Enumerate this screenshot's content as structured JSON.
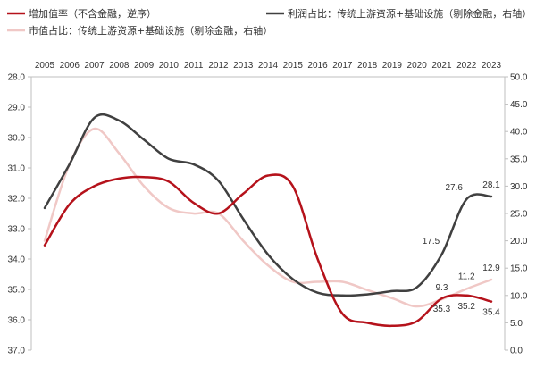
{
  "chart_data": {
    "type": "line",
    "categories": [
      "2005",
      "2006",
      "2007",
      "2008",
      "2009",
      "2010",
      "2011",
      "2012",
      "2013",
      "2014",
      "2015",
      "2016",
      "2017",
      "2018",
      "2019",
      "2020",
      "2021",
      "2022",
      "2023"
    ],
    "left_axis": {
      "reversed": true,
      "ylim": [
        28.0,
        37.0
      ],
      "ticks": [
        "28.0",
        "29.0",
        "30.0",
        "31.0",
        "32.0",
        "33.0",
        "34.0",
        "35.0",
        "36.0",
        "37.0"
      ]
    },
    "right_axis": {
      "ylim": [
        0,
        50
      ],
      "ticks": [
        "0.0",
        "5.0",
        "10.0",
        "15.0",
        "20.0",
        "25.0",
        "30.0",
        "35.0",
        "40.0",
        "45.0",
        "50.0"
      ]
    },
    "series": [
      {
        "name": "增加值率（不含金融，逆序）",
        "axis": "left",
        "color": "#b5121b",
        "values": [
          33.55,
          32.2,
          31.6,
          31.35,
          31.3,
          31.45,
          32.15,
          32.5,
          31.85,
          31.25,
          31.6,
          34.0,
          35.8,
          36.1,
          36.2,
          36.05,
          35.3,
          35.2,
          35.4
        ]
      },
      {
        "name": "利润占比：传统上游资源+基础设施（剔除金融，右轴）",
        "axis": "right",
        "color": "#404040",
        "values": [
          26.0,
          34.0,
          42.5,
          42.0,
          38.5,
          35.0,
          34.0,
          31.0,
          24.0,
          17.5,
          13.0,
          10.5,
          10.0,
          10.2,
          10.8,
          11.5,
          17.5,
          27.6,
          28.1
        ]
      },
      {
        "name": "市值占比：传统上游资源+基础设施（剔除金融，右轴）",
        "axis": "right",
        "color": "#f0c8c6",
        "values": [
          20.0,
          34.0,
          40.5,
          36.0,
          30.0,
          26.0,
          25.0,
          25.0,
          20.0,
          15.5,
          12.5,
          12.5,
          12.5,
          11.0,
          9.5,
          8.0,
          9.3,
          11.2,
          12.9
        ]
      }
    ],
    "data_labels": [
      {
        "series": 0,
        "index": 16,
        "text": "35.3"
      },
      {
        "series": 0,
        "index": 17,
        "text": "35.2"
      },
      {
        "series": 0,
        "index": 18,
        "text": "35.4"
      },
      {
        "series": 1,
        "index": 16,
        "text": "17.5"
      },
      {
        "series": 1,
        "index": 17,
        "text": "27.6"
      },
      {
        "series": 1,
        "index": 18,
        "text": "28.1"
      },
      {
        "series": 2,
        "index": 16,
        "text": "9.3"
      },
      {
        "series": 2,
        "index": 17,
        "text": "11.2"
      },
      {
        "series": 2,
        "index": 18,
        "text": "12.9"
      }
    ],
    "legend_placement": "top",
    "grid": false
  }
}
